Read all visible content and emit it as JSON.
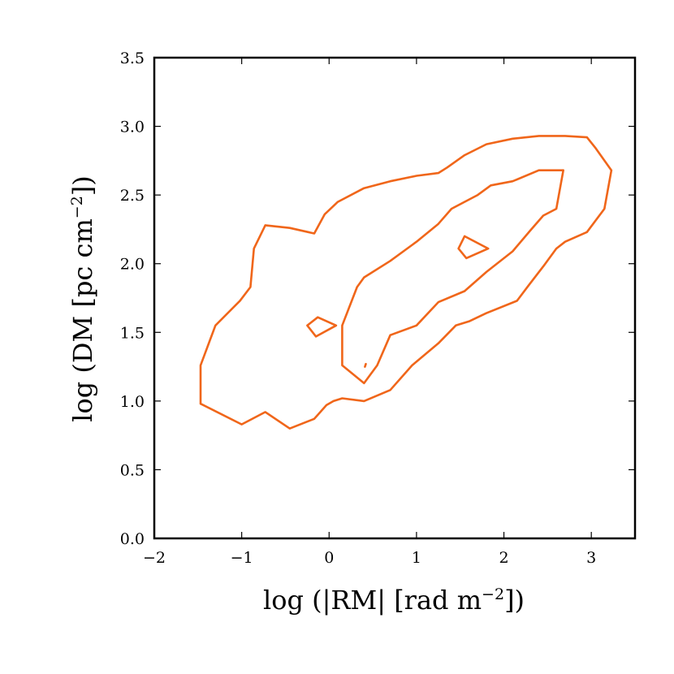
{
  "chart_data": {
    "type": "contour",
    "title": "",
    "xlabel": {
      "prefix": "log (|RM| [rad m",
      "sup": "−2",
      "suffix": "])"
    },
    "ylabel": {
      "prefix": "log (DM [pc cm",
      "sup": "−2",
      "suffix": "])"
    },
    "xlim": [
      -2,
      3.5
    ],
    "ylim": [
      0,
      3.5
    ],
    "xticks": [
      -2,
      -1,
      0,
      1,
      2,
      3
    ],
    "xtick_labels": [
      "−2",
      "−1",
      "0",
      "1",
      "2",
      "3"
    ],
    "yticks": [
      0.0,
      0.5,
      1.0,
      1.5,
      2.0,
      2.5,
      3.0,
      3.5
    ],
    "ytick_labels": [
      "0.0",
      "0.5",
      "1.0",
      "1.5",
      "2.0",
      "2.5",
      "3.0",
      "3.5"
    ],
    "grid": false,
    "line_color": "#f0661a",
    "contours": [
      {
        "level": "outer",
        "closed": true,
        "points": [
          [
            -1.47,
            0.98
          ],
          [
            -1.47,
            1.26
          ],
          [
            -1.3,
            1.55
          ],
          [
            -1.02,
            1.73
          ],
          [
            -0.9,
            1.83
          ],
          [
            -0.86,
            2.11
          ],
          [
            -0.73,
            2.28
          ],
          [
            -0.45,
            2.26
          ],
          [
            -0.17,
            2.22
          ],
          [
            -0.05,
            2.36
          ],
          [
            0.1,
            2.45
          ],
          [
            0.4,
            2.55
          ],
          [
            0.7,
            2.6
          ],
          [
            1.0,
            2.64
          ],
          [
            1.25,
            2.66
          ],
          [
            1.35,
            2.7
          ],
          [
            1.55,
            2.79
          ],
          [
            1.8,
            2.87
          ],
          [
            2.1,
            2.91
          ],
          [
            2.4,
            2.93
          ],
          [
            2.7,
            2.93
          ],
          [
            2.95,
            2.92
          ],
          [
            3.05,
            2.84
          ],
          [
            3.23,
            2.68
          ],
          [
            3.15,
            2.4
          ],
          [
            2.95,
            2.23
          ],
          [
            2.7,
            2.16
          ],
          [
            2.6,
            2.11
          ],
          [
            2.45,
            1.98
          ],
          [
            2.28,
            1.84
          ],
          [
            2.15,
            1.73
          ],
          [
            1.8,
            1.64
          ],
          [
            1.6,
            1.58
          ],
          [
            1.45,
            1.55
          ],
          [
            1.25,
            1.42
          ],
          [
            0.95,
            1.26
          ],
          [
            0.7,
            1.08
          ],
          [
            0.4,
            1.0
          ],
          [
            0.15,
            1.02
          ],
          [
            0.05,
            1.0
          ],
          [
            -0.03,
            0.97
          ],
          [
            -0.17,
            0.87
          ],
          [
            -0.45,
            0.8
          ],
          [
            -0.73,
            0.92
          ],
          [
            -1.0,
            0.83
          ],
          [
            -1.47,
            0.98
          ]
        ]
      },
      {
        "level": "inner",
        "closed": true,
        "points": [
          [
            0.15,
            1.26
          ],
          [
            0.4,
            1.13
          ],
          [
            0.55,
            1.26
          ],
          [
            0.7,
            1.48
          ],
          [
            1.0,
            1.55
          ],
          [
            1.25,
            1.72
          ],
          [
            1.55,
            1.8
          ],
          [
            1.8,
            1.94
          ],
          [
            2.1,
            2.09
          ],
          [
            2.3,
            2.24
          ],
          [
            2.45,
            2.35
          ],
          [
            2.6,
            2.4
          ],
          [
            2.68,
            2.68
          ],
          [
            2.4,
            2.68
          ],
          [
            2.1,
            2.6
          ],
          [
            1.85,
            2.57
          ],
          [
            1.7,
            2.5
          ],
          [
            1.55,
            2.45
          ],
          [
            1.4,
            2.4
          ],
          [
            1.25,
            2.29
          ],
          [
            1.0,
            2.16
          ],
          [
            0.7,
            2.02
          ],
          [
            0.4,
            1.9
          ],
          [
            0.32,
            1.83
          ],
          [
            0.15,
            1.55
          ],
          [
            0.15,
            1.26
          ]
        ]
      },
      {
        "level": "inner",
        "closed": true,
        "points": [
          [
            -0.13,
            1.61
          ],
          [
            0.08,
            1.55
          ],
          [
            -0.15,
            1.47
          ],
          [
            -0.25,
            1.55
          ],
          [
            -0.13,
            1.61
          ]
        ]
      },
      {
        "level": "inner",
        "closed": true,
        "points": [
          [
            1.55,
            2.2
          ],
          [
            1.82,
            2.11
          ],
          [
            1.57,
            2.04
          ],
          [
            1.48,
            2.11
          ],
          [
            1.55,
            2.2
          ]
        ]
      },
      {
        "level": "inner",
        "closed": false,
        "points": [
          [
            0.41,
            1.25
          ],
          [
            0.42,
            1.27
          ]
        ]
      }
    ]
  }
}
